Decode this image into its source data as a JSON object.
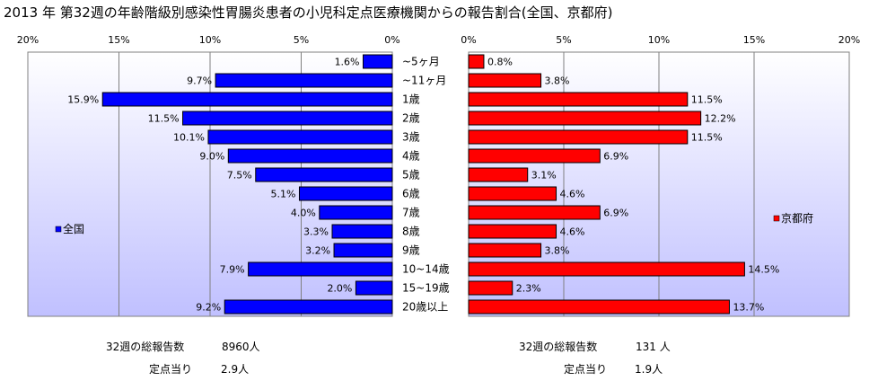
{
  "title": "2013 年 第32週の年齢階級別感染性胃腸炎患者の小児科定点医療機関からの報告割合(全国、京都府)",
  "chart_data": {
    "type": "bar",
    "orientation": "horizontal",
    "layout": "back-to-back",
    "categories": [
      "~5ヶ月",
      "~11ヶ月",
      "1歳",
      "2歳",
      "3歳",
      "4歳",
      "5歳",
      "6歳",
      "7歳",
      "8歳",
      "9歳",
      "10~14歳",
      "15~19歳",
      "20歳以上"
    ],
    "xlim": [
      0,
      20
    ],
    "left_ticks": [
      "20%",
      "15%",
      "10%",
      "5%",
      "0%"
    ],
    "right_ticks": [
      "0%",
      "5%",
      "10%",
      "15%",
      "20%"
    ],
    "series": [
      {
        "name": "全国",
        "side": "left",
        "color": "#0000ff",
        "values": [
          1.6,
          9.7,
          15.9,
          11.5,
          10.1,
          9.0,
          7.5,
          5.1,
          4.0,
          3.3,
          3.2,
          7.9,
          2.0,
          9.2
        ],
        "labels": [
          "1.6%",
          "9.7%",
          "15.9%",
          "11.5%",
          "10.1%",
          "9.0%",
          "7.5%",
          "5.1%",
          "4.0%",
          "3.3%",
          "3.2%",
          "7.9%",
          "2.0%",
          "9.2%"
        ]
      },
      {
        "name": "京都府",
        "side": "right",
        "color": "#ff0000",
        "values": [
          0.8,
          3.8,
          11.5,
          12.2,
          11.5,
          6.9,
          3.1,
          4.6,
          6.9,
          4.6,
          3.8,
          14.5,
          2.3,
          13.7
        ],
        "labels": [
          "0.8%",
          "3.8%",
          "11.5%",
          "12.2%",
          "11.5%",
          "6.9%",
          "3.1%",
          "4.6%",
          "6.9%",
          "4.6%",
          "3.8%",
          "14.5%",
          "2.3%",
          "13.7%"
        ]
      }
    ],
    "legend": {
      "left": "全国",
      "right": "京都府"
    },
    "grid": true
  },
  "footer": {
    "left": {
      "total_label": "32週の総報告数",
      "total_value": "8960人",
      "per_label": "定点当り",
      "per_value": "2.9人"
    },
    "right": {
      "total_label": "32週の総報告数",
      "total_value": "131 人",
      "per_label": "定点当り",
      "per_value": "1.9人"
    }
  },
  "colors": {
    "plot_bg_top": "#ffffff",
    "plot_bg_bottom": "#c0c0ff"
  }
}
